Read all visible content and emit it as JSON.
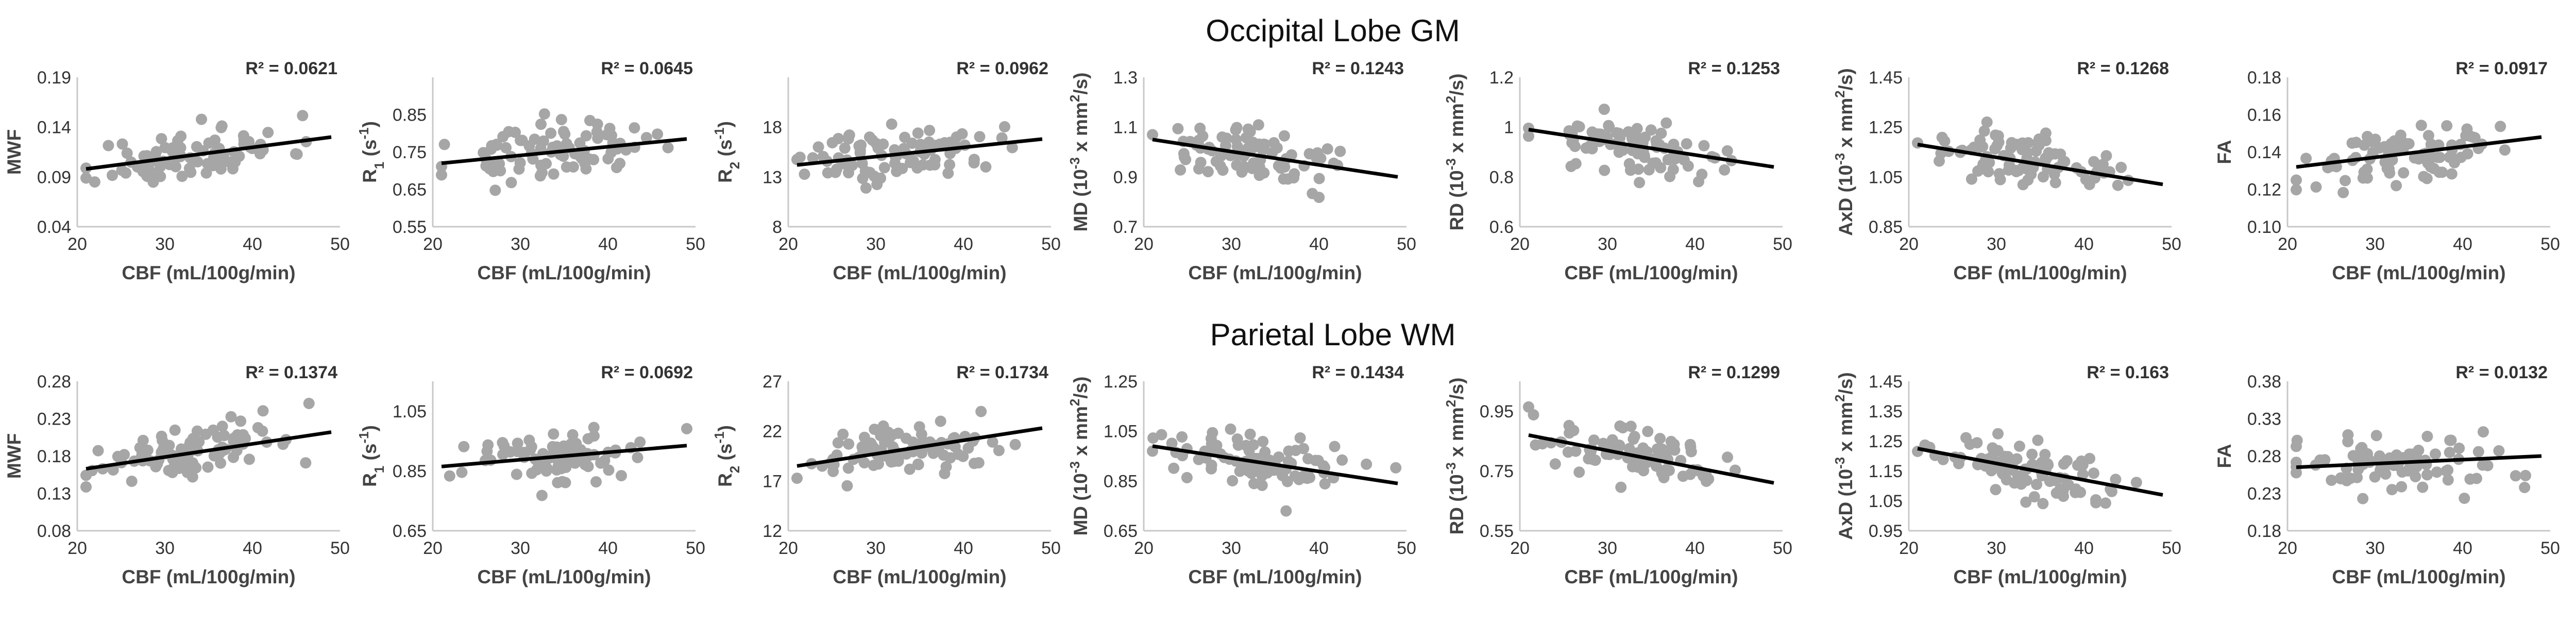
{
  "figure": {
    "row_titles": [
      "Occipital Lobe GM",
      "Parietal Lobe WM"
    ]
  },
  "style": {
    "point_color": "#a6a6a6",
    "trend_color": "#000000",
    "axis_color": "#c8c8c8",
    "text_color": "#444444"
  },
  "chart_data": [
    {
      "type": "scatter",
      "row": 0,
      "col": 0,
      "title": "Occipital Lobe GM",
      "xlabel": "CBF (mL/100g/min)",
      "ylabel": "MWF",
      "xlim": [
        20,
        50
      ],
      "xticks": [
        20,
        30,
        40,
        50
      ],
      "ylim": [
        0.04,
        0.19
      ],
      "yticks": [
        "0.04",
        "0.09",
        "0.14",
        "0.19"
      ],
      "r2": "R² = 0.0621",
      "trend": [
        [
          21,
          0.098
        ],
        [
          49,
          0.13
        ]
      ],
      "seed": 11
    },
    {
      "type": "scatter",
      "row": 0,
      "col": 1,
      "title": "Occipital Lobe GM",
      "xlabel": "CBF (mL/100g/min)",
      "ylabel": "R1 (s-1)",
      "ylabel_parts": [
        "R",
        "1",
        " (s",
        "-1",
        ")"
      ],
      "xlim": [
        20,
        50
      ],
      "xticks": [
        20,
        30,
        40,
        50
      ],
      "ylim": [
        0.55,
        0.95
      ],
      "yticks": [
        "0.55",
        "0.65",
        "0.75",
        "0.85"
      ],
      "r2": "R² = 0.0645",
      "trend": [
        [
          21,
          0.72
        ],
        [
          49,
          0.785
        ]
      ],
      "seed": 23
    },
    {
      "type": "scatter",
      "row": 0,
      "col": 2,
      "title": "Occipital Lobe GM",
      "xlabel": "CBF (mL/100g/min)",
      "ylabel": "R2 (s-1)",
      "ylabel_parts": [
        "R",
        "2",
        " (s",
        "-1",
        ")"
      ],
      "xlim": [
        20,
        50
      ],
      "xticks": [
        20,
        30,
        40,
        50
      ],
      "ylim": [
        8,
        23
      ],
      "yticks": [
        "8",
        "13",
        "18"
      ],
      "r2": "R² = 0.0962",
      "trend": [
        [
          21,
          14.2
        ],
        [
          49,
          16.8
        ]
      ],
      "seed": 37
    },
    {
      "type": "scatter",
      "row": 0,
      "col": 3,
      "title": "Occipital Lobe GM",
      "xlabel": "CBF (mL/100g/min)",
      "ylabel": "MD (10-3 x mm2/s)",
      "ylabel_parts": [
        "MD (10",
        "-3",
        " x mm",
        "2",
        "/s)"
      ],
      "xlim": [
        20,
        50
      ],
      "xticks": [
        20,
        30,
        40,
        50
      ],
      "ylim": [
        0.7,
        1.3
      ],
      "yticks": [
        "0.7",
        "0.9",
        "1.1",
        "1.3"
      ],
      "r2": "R² = 0.1243",
      "trend": [
        [
          21,
          1.05
        ],
        [
          49,
          0.9
        ]
      ],
      "seed": 41
    },
    {
      "type": "scatter",
      "row": 0,
      "col": 4,
      "title": "Occipital Lobe GM",
      "xlabel": "CBF (mL/100g/min)",
      "ylabel": "RD (10-3 x mm2/s)",
      "ylabel_parts": [
        "RD (10",
        "-3",
        " x mm",
        "2",
        "/s)"
      ],
      "xlim": [
        20,
        50
      ],
      "xticks": [
        20,
        30,
        40,
        50
      ],
      "ylim": [
        0.6,
        1.2
      ],
      "yticks": [
        "0.6",
        "0.8",
        "1",
        "1.2"
      ],
      "r2": "R² = 0.1253",
      "trend": [
        [
          21,
          0.99
        ],
        [
          49,
          0.84
        ]
      ],
      "seed": 53
    },
    {
      "type": "scatter",
      "row": 0,
      "col": 5,
      "title": "Occipital Lobe GM",
      "xlabel": "CBF (mL/100g/min)",
      "ylabel": "AxD (10-3 x mm2/s)",
      "ylabel_parts": [
        "AxD (10",
        "-3",
        " x mm",
        "2",
        "/s)"
      ],
      "xlim": [
        20,
        50
      ],
      "xticks": [
        20,
        30,
        40,
        50
      ],
      "ylim": [
        0.85,
        1.45
      ],
      "yticks": [
        "0.85",
        "1.05",
        "1.25",
        "1.45"
      ],
      "r2": "R² = 0.1268",
      "trend": [
        [
          21,
          1.18
        ],
        [
          49,
          1.02
        ]
      ],
      "seed": 67
    },
    {
      "type": "scatter",
      "row": 0,
      "col": 6,
      "title": "Occipital Lobe GM",
      "xlabel": "CBF (mL/100g/min)",
      "ylabel": "FA",
      "xlim": [
        20,
        50
      ],
      "xticks": [
        20,
        30,
        40,
        50
      ],
      "ylim": [
        0.1,
        0.18
      ],
      "yticks": [
        "0.10",
        "0.12",
        "0.14",
        "0.16",
        "0.18"
      ],
      "r2": "R² = 0.0917",
      "trend": [
        [
          21,
          0.132
        ],
        [
          49,
          0.148
        ]
      ],
      "seed": 79
    },
    {
      "type": "scatter",
      "row": 1,
      "col": 0,
      "title": "Parietal Lobe WM",
      "xlabel": "CBF (mL/100g/min)",
      "ylabel": "MWF",
      "xlim": [
        20,
        50
      ],
      "xticks": [
        20,
        30,
        40,
        50
      ],
      "ylim": [
        0.08,
        0.28
      ],
      "yticks": [
        "0.08",
        "0.13",
        "0.18",
        "0.23",
        "0.28"
      ],
      "r2": "R² = 0.1374",
      "trend": [
        [
          21,
          0.163
        ],
        [
          49,
          0.212
        ]
      ],
      "seed": 83
    },
    {
      "type": "scatter",
      "row": 1,
      "col": 1,
      "title": "Parietal Lobe WM",
      "xlabel": "CBF (mL/100g/min)",
      "ylabel": "R1 (s-1)",
      "ylabel_parts": [
        "R",
        "1",
        " (s",
        "-1",
        ")"
      ],
      "xlim": [
        20,
        50
      ],
      "xticks": [
        20,
        30,
        40,
        50
      ],
      "ylim": [
        0.65,
        1.15
      ],
      "yticks": [
        "0.65",
        "0.85",
        "1.05"
      ],
      "r2": "R² = 0.0692",
      "trend": [
        [
          21,
          0.865
        ],
        [
          49,
          0.935
        ]
      ],
      "seed": 97
    },
    {
      "type": "scatter",
      "row": 1,
      "col": 2,
      "title": "Parietal Lobe WM",
      "xlabel": "CBF (mL/100g/min)",
      "ylabel": "R2 (s-1)",
      "ylabel_parts": [
        "R",
        "2",
        " (s",
        "-1",
        ")"
      ],
      "xlim": [
        20,
        50
      ],
      "xticks": [
        20,
        30,
        40,
        50
      ],
      "ylim": [
        12,
        27
      ],
      "yticks": [
        "12",
        "17",
        "22",
        "27"
      ],
      "r2": "R² = 0.1734",
      "trend": [
        [
          21,
          18.5
        ],
        [
          49,
          22.3
        ]
      ],
      "seed": 101
    },
    {
      "type": "scatter",
      "row": 1,
      "col": 3,
      "title": "Parietal Lobe WM",
      "xlabel": "CBF (mL/100g/min)",
      "ylabel": "MD (10-3 x mm2/s)",
      "ylabel_parts": [
        "MD (10",
        "-3",
        " x mm",
        "2",
        "/s)"
      ],
      "xlim": [
        20,
        50
      ],
      "xticks": [
        20,
        30,
        40,
        50
      ],
      "ylim": [
        0.65,
        1.25
      ],
      "yticks": [
        "0.65",
        "0.85",
        "1.05",
        "1.25"
      ],
      "r2": "R² = 0.1434",
      "trend": [
        [
          21,
          0.99
        ],
        [
          49,
          0.84
        ]
      ],
      "seed": 113
    },
    {
      "type": "scatter",
      "row": 1,
      "col": 4,
      "title": "Parietal Lobe WM",
      "xlabel": "CBF (mL/100g/min)",
      "ylabel": "RD (10-3 x mm2/s)",
      "ylabel_parts": [
        "RD (10",
        "-3",
        " x mm",
        "2",
        "/s)"
      ],
      "xlim": [
        20,
        50
      ],
      "xticks": [
        20,
        30,
        40,
        50
      ],
      "ylim": [
        0.55,
        1.05
      ],
      "yticks": [
        "0.55",
        "0.75",
        "0.95"
      ],
      "r2": "R² = 0.1299",
      "trend": [
        [
          21,
          0.87
        ],
        [
          49,
          0.71
        ]
      ],
      "seed": 127
    },
    {
      "type": "scatter",
      "row": 1,
      "col": 5,
      "title": "Parietal Lobe WM",
      "xlabel": "CBF (mL/100g/min)",
      "ylabel": "AxD (10-3 x mm2/s)",
      "ylabel_parts": [
        "AxD (10",
        "-3",
        " x mm",
        "2",
        "/s)"
      ],
      "xlim": [
        20,
        50
      ],
      "xticks": [
        20,
        30,
        40,
        50
      ],
      "ylim": [
        0.95,
        1.45
      ],
      "yticks": [
        "0.95",
        "1.05",
        "1.15",
        "1.25",
        "1.35",
        "1.45"
      ],
      "r2": "R² = 0.163",
      "trend": [
        [
          21,
          1.225
        ],
        [
          49,
          1.07
        ]
      ],
      "seed": 131
    },
    {
      "type": "scatter",
      "row": 1,
      "col": 6,
      "title": "Parietal Lobe WM",
      "xlabel": "CBF (mL/100g/min)",
      "ylabel": "FA",
      "xlim": [
        20,
        50
      ],
      "xticks": [
        20,
        30,
        40,
        50
      ],
      "ylim": [
        0.18,
        0.38
      ],
      "yticks": [
        "0.18",
        "0.23",
        "0.28",
        "0.33",
        "0.38"
      ],
      "r2": "R² = 0.0132",
      "trend": [
        [
          21,
          0.265
        ],
        [
          49,
          0.28
        ]
      ],
      "seed": 139
    }
  ]
}
